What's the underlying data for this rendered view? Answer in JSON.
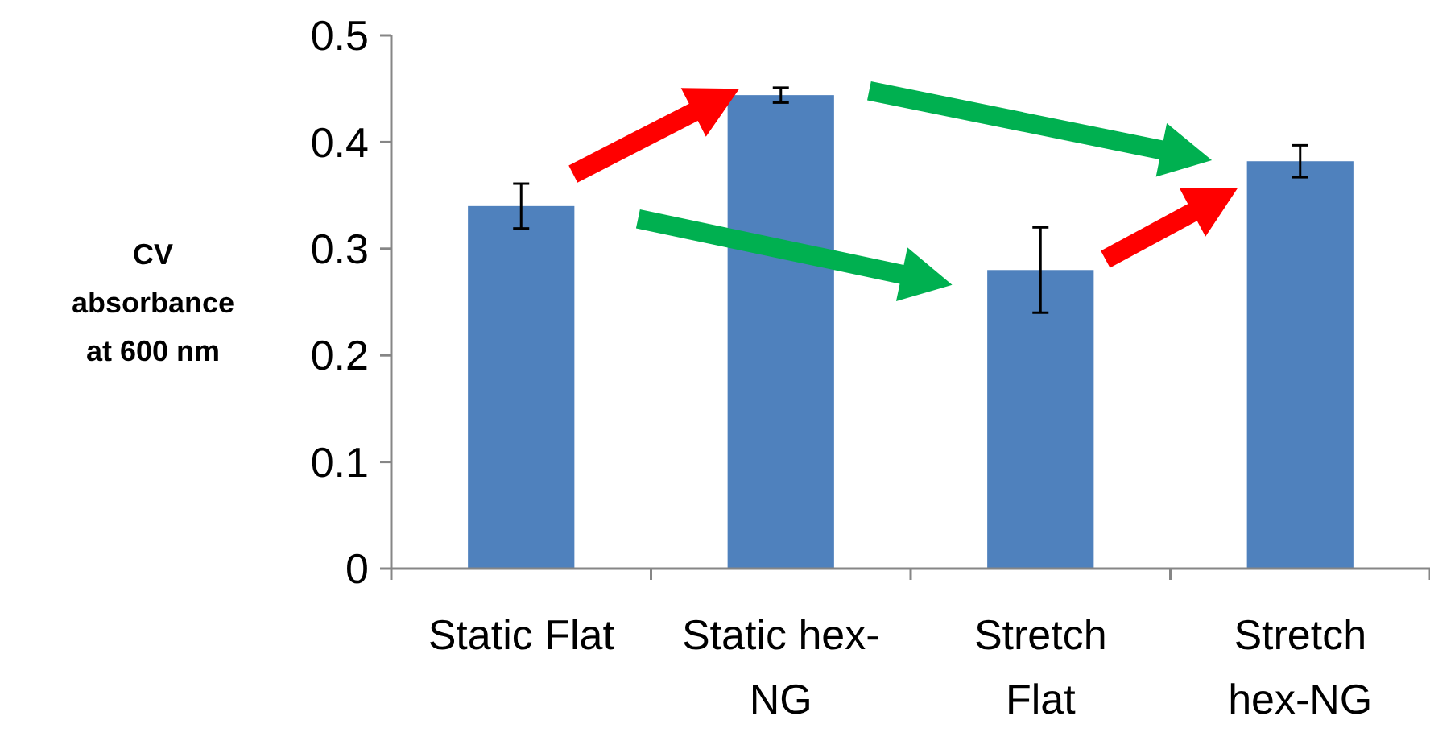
{
  "chart_data": {
    "type": "bar",
    "ylabel": "CV absorbance at 600 nm",
    "categories": [
      "Static Flat",
      "Static hex-NG",
      "Stretch Flat",
      "Stretch hex-NG"
    ],
    "values": [
      0.34,
      0.444,
      0.28,
      0.382
    ],
    "errors": [
      0.021,
      0.007,
      0.04,
      0.015
    ],
    "color": "#4f81bd",
    "ylim": [
      0,
      0.5
    ],
    "yticks": [
      {
        "value": 0,
        "label": "0"
      },
      0.1,
      0.2,
      0.3,
      0.4,
      0.5
    ],
    "grid": false
  }
}
